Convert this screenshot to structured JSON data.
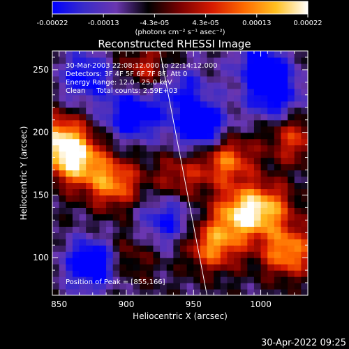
{
  "colorbar": {
    "ticks": [
      "-0.00022",
      "-0.00013",
      "-4.3e-05",
      "4.3e-05",
      "0.00013",
      "0.00022"
    ],
    "unit": "(photons cm⁻² s⁻¹ asec⁻²)",
    "stops": [
      "#0000ff",
      "#3a2cc8",
      "#6a36b0",
      "#000000",
      "#7a0000",
      "#d61a00",
      "#ff6a00",
      "#ffc020",
      "#ffffff"
    ]
  },
  "chart_data": {
    "type": "heatmap",
    "title": "Reconstructed RHESSI Image",
    "xlabel": "Heliocentric X (arcsec)",
    "ylabel": "Heliocentric Y (arcsec)",
    "xlim": [
      845,
      1035
    ],
    "ylim": [
      70,
      265
    ],
    "xticks": [
      850,
      900,
      950,
      1000
    ],
    "yticks": [
      100,
      150,
      200,
      250
    ],
    "value_range": [
      -0.00022,
      0.00022
    ],
    "grid": false,
    "peak": [
      855,
      166
    ],
    "bright_regions": [
      {
        "x": 862,
        "y": 178,
        "level": 0.95
      },
      {
        "x": 890,
        "y": 160,
        "level": 0.8
      },
      {
        "x": 850,
        "y": 195,
        "level": 0.85
      },
      {
        "x": 985,
        "y": 135,
        "level": 0.9
      },
      {
        "x": 1020,
        "y": 105,
        "level": 0.85
      },
      {
        "x": 1005,
        "y": 140,
        "level": 0.7
      },
      {
        "x": 975,
        "y": 178,
        "level": 0.75
      },
      {
        "x": 965,
        "y": 110,
        "level": 0.8
      },
      {
        "x": 1025,
        "y": 195,
        "level": 0.55
      },
      {
        "x": 940,
        "y": 165,
        "level": 0.45
      },
      {
        "x": 915,
        "y": 250,
        "level": 0.5
      },
      {
        "x": 900,
        "y": 100,
        "level": 0.35
      }
    ],
    "dim_regions": [
      {
        "x": 875,
        "y": 95,
        "level": -0.9
      },
      {
        "x": 905,
        "y": 215,
        "level": -0.8
      },
      {
        "x": 955,
        "y": 205,
        "level": -0.85
      },
      {
        "x": 1010,
        "y": 230,
        "level": -0.7
      },
      {
        "x": 870,
        "y": 245,
        "level": -0.6
      },
      {
        "x": 930,
        "y": 130,
        "level": -0.55
      },
      {
        "x": 1000,
        "y": 255,
        "level": -0.6
      },
      {
        "x": 940,
        "y": 235,
        "level": -0.5
      }
    ],
    "limb_line": [
      [
        925,
        265
      ],
      [
        960,
        70
      ]
    ],
    "annotations": {
      "time": "30-Mar-2003 22:08:12.000 to 22:14:12.000",
      "detectors": "Detectors: 3F 4F 5F 6F 7F 8F, Att 0",
      "energy": "Energy Range: 12.0 - 25.0 keV",
      "clean": "Clean     Total counts: 2.59E+03",
      "peak": "Position of Peak = [855,166]"
    }
  },
  "timestamp": "30-Apr-2022 09:25"
}
